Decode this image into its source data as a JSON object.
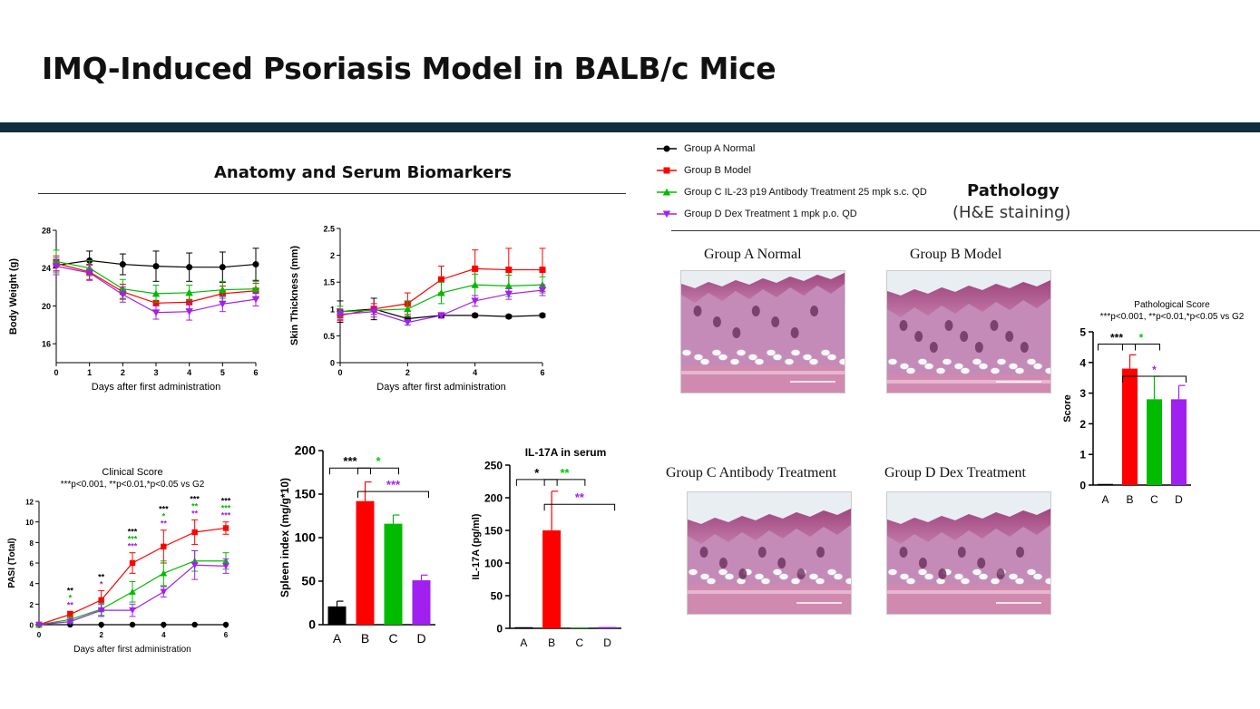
{
  "page": {
    "title": "IMQ-Induced Psoriasis Model in BALB/c Mice"
  },
  "sections": {
    "anatomy": "Anatomy and Serum Biomarkers",
    "pathology": "Pathology",
    "pathology_sub": "(H&E staining)"
  },
  "legend": [
    {
      "label": "Group A Normal",
      "color": "#000000",
      "marker": "circle"
    },
    {
      "label": "Group B Model",
      "color": "#ff0000",
      "marker": "square"
    },
    {
      "label": "Group C IL-23 p19 Antibody Treatment 25 mpk s.c. QD",
      "color": "#00bb00",
      "marker": "triangle-up"
    },
    {
      "label": "Group D Dex Treatment 1 mpk p.o. QD",
      "color": "#a020f0",
      "marker": "triangle-down"
    }
  ],
  "pathology_images": [
    {
      "label": "Group A Normal",
      "variant": "normal"
    },
    {
      "label": "Group B Model",
      "variant": "model"
    },
    {
      "label": "Group C Antibody Treatment",
      "variant": "treat"
    },
    {
      "label": "Group D Dex Treatment",
      "variant": "treat"
    }
  ],
  "chart_data": [
    {
      "id": "body-weight",
      "type": "line",
      "title": "",
      "xlabel": "Days after first administration",
      "ylabel": "Body Weight (g)",
      "x": [
        0,
        1,
        2,
        3,
        4,
        5,
        6
      ],
      "xticks": [
        0,
        1,
        2,
        3,
        4,
        5,
        6
      ],
      "yticks": [
        16,
        20,
        24,
        28
      ],
      "xlim": [
        0,
        6
      ],
      "ylim": [
        14,
        28
      ],
      "series": [
        {
          "group": "A",
          "values": [
            24.3,
            24.8,
            24.4,
            24.2,
            24.1,
            24.1,
            24.4
          ],
          "err": [
            0.6,
            1.0,
            1.1,
            1.6,
            1.5,
            1.6,
            1.7
          ]
        },
        {
          "group": "B",
          "values": [
            24.5,
            23.6,
            21.5,
            20.3,
            20.4,
            21.3,
            21.6
          ],
          "err": [
            0.8,
            0.8,
            0.8,
            0.8,
            0.8,
            0.8,
            0.8
          ]
        },
        {
          "group": "C",
          "values": [
            24.7,
            24.0,
            21.8,
            21.3,
            21.4,
            21.7,
            21.8
          ],
          "err": [
            1.2,
            0.8,
            1.0,
            0.9,
            0.8,
            0.9,
            0.8
          ]
        },
        {
          "group": "D",
          "values": [
            24.2,
            23.5,
            21.2,
            19.3,
            19.4,
            20.2,
            20.7
          ],
          "err": [
            0.9,
            0.8,
            0.8,
            0.7,
            0.9,
            0.8,
            0.7
          ]
        }
      ]
    },
    {
      "id": "skin-thickness",
      "type": "line",
      "title": "",
      "xlabel": "Days after first administration",
      "ylabel": "Skin Thickness (mm)",
      "x": [
        0,
        1,
        2,
        3,
        4,
        5,
        6
      ],
      "xticks": [
        0,
        2,
        4,
        6
      ],
      "yticks": [
        0.0,
        0.5,
        1.0,
        1.5,
        2.0,
        2.5
      ],
      "xlim": [
        0,
        6
      ],
      "ylim": [
        0,
        2.5
      ],
      "series": [
        {
          "group": "A",
          "x": [
            0,
            1,
            2,
            3,
            4,
            5,
            6
          ],
          "values": [
            0.95,
            1.0,
            0.82,
            0.88,
            0.88,
            0.86,
            0.88
          ],
          "err": [
            0.2,
            0.2,
            0.04,
            0.04,
            0.03,
            0.03,
            0.03
          ]
        },
        {
          "group": "B",
          "x": [
            0,
            1,
            2,
            3,
            4,
            5,
            6
          ],
          "values": [
            0.88,
            1.0,
            1.1,
            1.55,
            1.75,
            1.73,
            1.73
          ],
          "err": [
            0.1,
            0.1,
            0.2,
            0.25,
            0.35,
            0.4,
            0.4
          ]
        },
        {
          "group": "C",
          "x": [
            0,
            2,
            3,
            4,
            5,
            6
          ],
          "values": [
            0.95,
            1.0,
            1.3,
            1.45,
            1.43,
            1.45
          ],
          "err": [
            0.1,
            0.15,
            0.2,
            0.2,
            0.2,
            0.15
          ]
        },
        {
          "group": "D",
          "x": [
            0,
            1,
            2,
            3,
            4,
            5,
            6
          ],
          "values": [
            0.9,
            0.95,
            0.75,
            0.88,
            1.15,
            1.28,
            1.35
          ],
          "err": [
            0.1,
            0.1,
            0.05,
            0.05,
            0.1,
            0.1,
            0.1
          ]
        }
      ]
    },
    {
      "id": "clinical-score",
      "type": "line",
      "title": "Clinical Score",
      "subtitle": "***p<0.001, **p<0.01,*p<0.05 vs G2",
      "xlabel": "Days after first administration",
      "ylabel": "PASI (Total)",
      "x": [
        0,
        1,
        2,
        3,
        4,
        5,
        6
      ],
      "xticks": [
        0,
        2,
        4,
        6
      ],
      "yticks": [
        0,
        2,
        4,
        6,
        8,
        10,
        12
      ],
      "xlim": [
        0,
        6
      ],
      "ylim": [
        0,
        12
      ],
      "series": [
        {
          "group": "A",
          "values": [
            0,
            0,
            0,
            0,
            0,
            0,
            0
          ],
          "err": [
            0,
            0,
            0,
            0,
            0,
            0,
            0
          ]
        },
        {
          "group": "B",
          "values": [
            0,
            1.0,
            2.4,
            6.0,
            7.6,
            9.0,
            9.4
          ],
          "err": [
            0,
            0.3,
            0.9,
            1.0,
            1.6,
            1.2,
            0.6
          ]
        },
        {
          "group": "C",
          "values": [
            0,
            0.5,
            1.5,
            3.2,
            5.0,
            6.2,
            6.2
          ],
          "err": [
            0,
            0.3,
            0.6,
            1.0,
            1.2,
            1.0,
            0.8
          ]
        },
        {
          "group": "D",
          "values": [
            0,
            0.3,
            1.4,
            1.4,
            3.2,
            5.8,
            5.7
          ],
          "err": [
            0,
            0.2,
            0.6,
            0.6,
            0.5,
            1.4,
            0.7
          ]
        }
      ],
      "annotations": [
        {
          "x": 1,
          "marks": [
            {
              "text": "**",
              "color": "#000000"
            },
            {
              "text": "*",
              "color": "#00bb00"
            },
            {
              "text": "**",
              "color": "#a020f0"
            }
          ]
        },
        {
          "x": 2,
          "marks": [
            {
              "text": "**",
              "color": "#000000"
            },
            {
              "text": "*",
              "color": "#a020f0"
            }
          ]
        },
        {
          "x": 3,
          "marks": [
            {
              "text": "***",
              "color": "#000000"
            },
            {
              "text": "***",
              "color": "#00bb00"
            },
            {
              "text": "***",
              "color": "#a020f0"
            }
          ]
        },
        {
          "x": 4,
          "marks": [
            {
              "text": "***",
              "color": "#000000"
            },
            {
              "text": "*",
              "color": "#00bb00"
            },
            {
              "text": "**",
              "color": "#a020f0"
            }
          ]
        },
        {
          "x": 5,
          "marks": [
            {
              "text": "***",
              "color": "#000000"
            },
            {
              "text": "**",
              "color": "#00bb00"
            },
            {
              "text": "**",
              "color": "#a020f0"
            }
          ]
        },
        {
          "x": 6,
          "marks": [
            {
              "text": "***",
              "color": "#000000"
            },
            {
              "text": "***",
              "color": "#00bb00"
            },
            {
              "text": "***",
              "color": "#a020f0"
            }
          ]
        }
      ]
    },
    {
      "id": "spleen-index",
      "type": "bar",
      "title": "",
      "ylabel": "Spleen index (mg/g*10)",
      "categories": [
        "A",
        "B",
        "C",
        "D"
      ],
      "values": [
        21,
        142,
        116,
        51
      ],
      "err": [
        6,
        22,
        10,
        6
      ],
      "colors": [
        "#000000",
        "#ff0000",
        "#00bb00",
        "#a020f0"
      ],
      "yticks": [
        0,
        50,
        100,
        150,
        200
      ],
      "ylim": [
        0,
        200
      ],
      "brackets": [
        {
          "from": "A",
          "to": "B",
          "text": "***",
          "color": "#000000",
          "level": 180
        },
        {
          "from": "B",
          "to": "C",
          "text": "*",
          "color": "#00cc00",
          "level": 180
        },
        {
          "from": "B",
          "to": "D",
          "text": "***",
          "color": "#a020f0",
          "level": 153
        }
      ]
    },
    {
      "id": "il17a-serum",
      "type": "bar",
      "title": "IL-17A in serum",
      "ylabel": "IL-17A (pg/ml)",
      "categories": [
        "A",
        "B",
        "C",
        "D"
      ],
      "values": [
        0,
        150,
        1,
        2
      ],
      "err": [
        0,
        60,
        0,
        0
      ],
      "colors": [
        "#000000",
        "#ff0000",
        "#00bb00",
        "#a020f0"
      ],
      "yticks": [
        0,
        50,
        100,
        150,
        200,
        250
      ],
      "ylim": [
        0,
        250
      ],
      "brackets": [
        {
          "from": "A",
          "to": "B",
          "text": "*",
          "color": "#000000",
          "level": 228
        },
        {
          "from": "B",
          "to": "C",
          "text": "**",
          "color": "#00cc00",
          "level": 228
        },
        {
          "from": "B",
          "to": "D",
          "text": "**",
          "color": "#a020f0",
          "level": 190
        }
      ]
    },
    {
      "id": "pathological-score",
      "type": "bar",
      "title": "Pathological Score",
      "subtitle": "***p<0.001, **p<0.01,*p<0.05 vs G2",
      "ylabel": "Score",
      "categories": [
        "A",
        "B",
        "C",
        "D"
      ],
      "values": [
        0,
        3.8,
        2.8,
        2.8
      ],
      "err": [
        0,
        0.45,
        0.75,
        0.45
      ],
      "colors": [
        "#000000",
        "#ff0000",
        "#00bb00",
        "#a020f0"
      ],
      "yticks": [
        0,
        1,
        2,
        3,
        4,
        5
      ],
      "ylim": [
        0,
        5
      ],
      "brackets": [
        {
          "from": "A",
          "to": "B",
          "text": "***",
          "color": "#000000",
          "level": 4.6
        },
        {
          "from": "B",
          "to": "C",
          "text": "*",
          "color": "#00cc00",
          "level": 4.6
        },
        {
          "from": "B",
          "to": "D",
          "text": "*",
          "color": "#a020f0",
          "level": 3.55
        }
      ]
    }
  ]
}
